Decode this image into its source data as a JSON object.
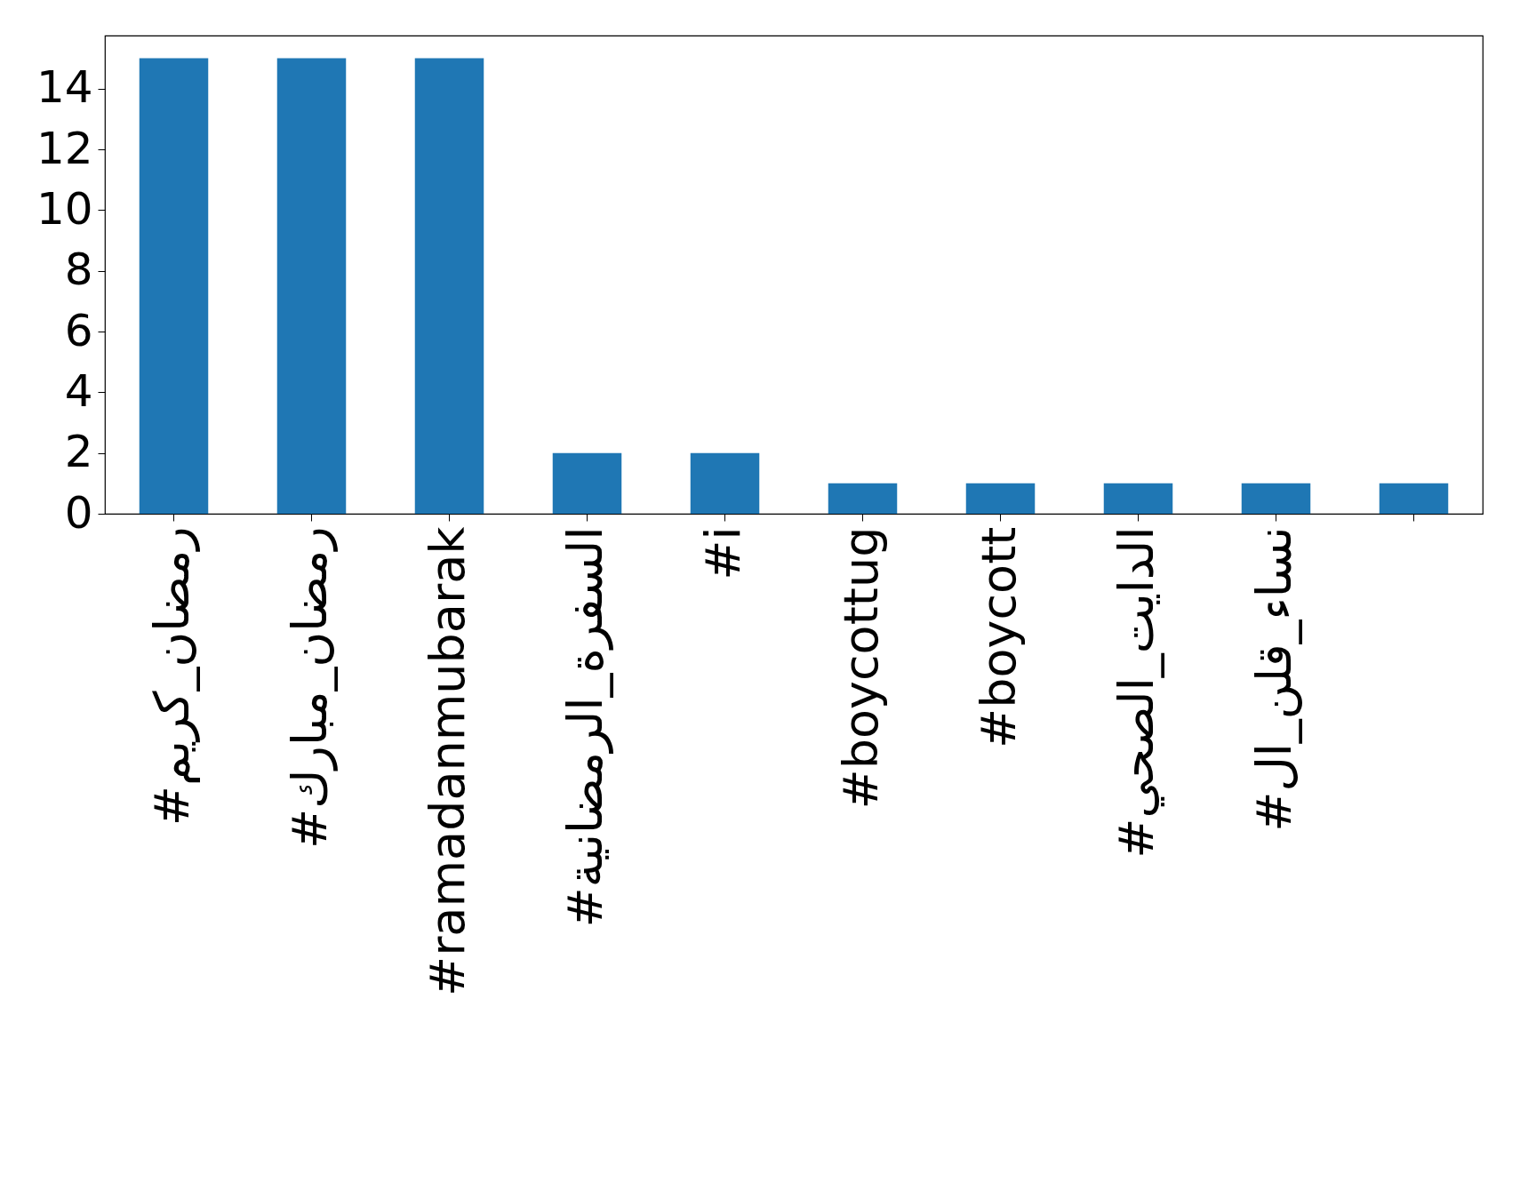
{
  "chart_data": {
    "type": "bar",
    "categories": [
      "#رمضان_كريم",
      "#رمضان_مبارك",
      "#ramadanmubarak",
      "#السفرة_الرمضانية",
      "#i",
      "#boycottug",
      "#boycott",
      "#الدايت_الصحي",
      "#نساء_قلن_ال",
      null
    ],
    "values": [
      15,
      15,
      15,
      2,
      2,
      1,
      1,
      1,
      1,
      1
    ],
    "color": "#1f77b4",
    "ylim": [
      0,
      15.75
    ],
    "yticks": [
      0,
      2,
      4,
      6,
      8,
      10,
      12,
      14
    ],
    "grid": false
  }
}
